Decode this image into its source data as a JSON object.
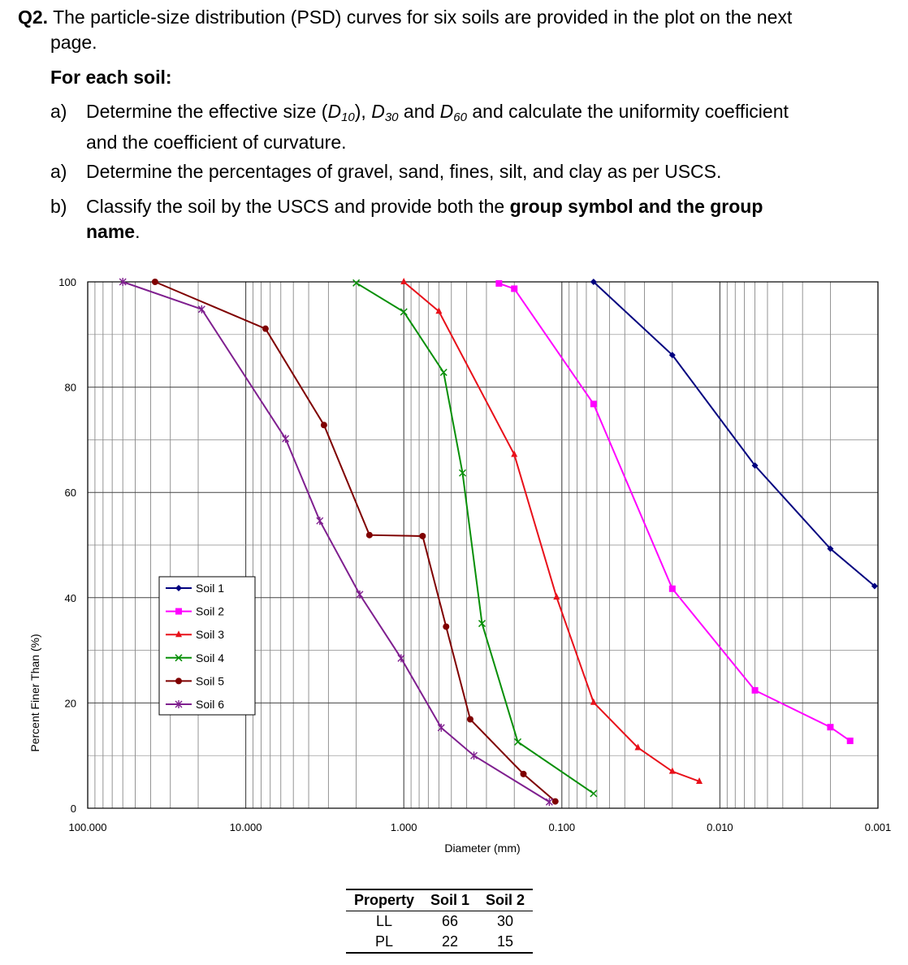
{
  "question": {
    "number": "Q2.",
    "text_line1": "The particle-size distribution (PSD) curves for six soils are provided in the plot on the next",
    "text_line2": "page.",
    "for_each": "For each soil:",
    "item_a1": {
      "label": "a)",
      "pre": "Determine the effective size (",
      "d10": "D",
      "d10_sub": "10",
      "mid1": "), ",
      "d30": "D",
      "d30_sub": "30",
      "mid2": " and ",
      "d60": "D",
      "d60_sub": "60",
      "post": " and calculate the uniformity coefficient",
      "line2": "and the coefficient of curvature."
    },
    "item_a2": {
      "label": "a)",
      "text": "Determine the percentages of gravel, sand, fines, silt, and clay as per USCS."
    },
    "item_b": {
      "label": "b)",
      "pre": "Classify the soil by the USCS and provide both the ",
      "bold1": "group symbol and the group",
      "bold2": "name",
      "post": "."
    }
  },
  "chart_data": {
    "type": "line",
    "x_scale": "log",
    "x_reversed": true,
    "xlim": [
      100,
      0.001
    ],
    "ylim": [
      0,
      100
    ],
    "xlabel": "Diameter (mm)",
    "ylabel": "Percent Finer Than (%)",
    "x_ticks": [
      "100.000",
      "10.000",
      "1.000",
      "0.100",
      "0.010",
      "0.001"
    ],
    "y_ticks": [
      "0",
      "20",
      "40",
      "60",
      "80",
      "100"
    ],
    "grid": true,
    "legend_position": "lower-left",
    "series": [
      {
        "name": "Soil 1",
        "color": "#00007f",
        "marker": "diamond",
        "points": [
          [
            0.063,
            100
          ],
          [
            0.02,
            86.1
          ],
          [
            0.006,
            65.1
          ],
          [
            0.002,
            49.3
          ],
          [
            0.00105,
            42.2
          ]
        ]
      },
      {
        "name": "Soil 2",
        "color": "#ff00ff",
        "marker": "square",
        "points": [
          [
            0.25,
            99.7
          ],
          [
            0.2,
            98.7
          ],
          [
            0.063,
            76.8
          ],
          [
            0.02,
            41.7
          ],
          [
            0.006,
            22.4
          ],
          [
            0.002,
            15.4
          ],
          [
            0.0015,
            12.8
          ]
        ]
      },
      {
        "name": "Soil 3",
        "color": "#e8101a",
        "marker": "triangle",
        "points": [
          [
            1.0,
            100
          ],
          [
            0.6,
            94.4
          ],
          [
            0.2,
            67.2
          ],
          [
            0.108,
            40.1
          ],
          [
            0.063,
            20.1
          ],
          [
            0.033,
            11.5
          ],
          [
            0.02,
            7.0
          ],
          [
            0.0135,
            5.1
          ]
        ]
      },
      {
        "name": "Soil 4",
        "color": "#078f07",
        "marker": "x",
        "points": [
          [
            2.0,
            99.8
          ],
          [
            1.0,
            94.3
          ],
          [
            0.56,
            82.8
          ],
          [
            0.425,
            63.7
          ],
          [
            0.32,
            35.1
          ],
          [
            0.19,
            12.6
          ],
          [
            0.063,
            2.8
          ]
        ]
      },
      {
        "name": "Soil 5",
        "color": "#7f0000",
        "marker": "circle",
        "points": [
          [
            37.5,
            100
          ],
          [
            7.5,
            91.1
          ],
          [
            3.2,
            72.8
          ],
          [
            1.65,
            51.9
          ],
          [
            0.76,
            51.7
          ],
          [
            0.54,
            34.5
          ],
          [
            0.38,
            16.9
          ],
          [
            0.175,
            6.5
          ],
          [
            0.11,
            1.3
          ]
        ]
      },
      {
        "name": "Soil 6",
        "color": "#7f1f8f",
        "marker": "star",
        "points": [
          [
            60,
            100
          ],
          [
            19,
            94.8
          ],
          [
            5.6,
            70.2
          ],
          [
            3.4,
            54.6
          ],
          [
            1.9,
            40.6
          ],
          [
            1.04,
            28.5
          ],
          [
            0.58,
            15.3
          ],
          [
            0.36,
            10.0
          ],
          [
            0.12,
            1.2
          ]
        ]
      }
    ]
  },
  "properties_table": {
    "headers": [
      "Property",
      "Soil 1",
      "Soil 2"
    ],
    "rows": [
      [
        "LL",
        "66",
        "30"
      ],
      [
        "PL",
        "22",
        "15"
      ]
    ]
  }
}
